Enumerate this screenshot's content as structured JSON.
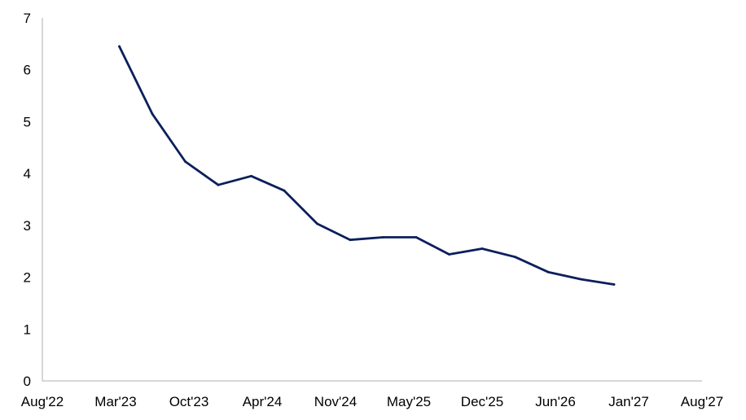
{
  "chart_data": {
    "type": "line",
    "title": "",
    "xlabel": "",
    "ylabel": "",
    "x_ticks": [
      "Aug'22",
      "Mar'23",
      "Oct'23",
      "Apr'24",
      "Nov'24",
      "May'25",
      "Dec'25",
      "Jun'26",
      "Jan'27",
      "Aug'27"
    ],
    "xlim": [
      "2022-08",
      "2027-08"
    ],
    "y_ticks": [
      "0",
      "1",
      "2",
      "3",
      "4",
      "5",
      "6",
      "7"
    ],
    "ylim": [
      0,
      7
    ],
    "grid": false,
    "legend": "none",
    "series": [
      {
        "color": "#0c1f5b",
        "points": [
          {
            "x": "2023-03",
            "y": 6.45
          },
          {
            "x": "2023-06",
            "y": 5.15
          },
          {
            "x": "2023-09",
            "y": 4.23
          },
          {
            "x": "2023-12",
            "y": 3.78
          },
          {
            "x": "2024-03",
            "y": 3.95
          },
          {
            "x": "2024-06",
            "y": 3.67
          },
          {
            "x": "2024-09",
            "y": 3.03
          },
          {
            "x": "2024-12",
            "y": 2.72
          },
          {
            "x": "2025-03",
            "y": 2.77
          },
          {
            "x": "2025-06",
            "y": 2.77
          },
          {
            "x": "2025-09",
            "y": 2.44
          },
          {
            "x": "2025-12",
            "y": 2.55
          },
          {
            "x": "2026-03",
            "y": 2.39
          },
          {
            "x": "2026-06",
            "y": 2.1
          },
          {
            "x": "2026-09",
            "y": 1.96
          },
          {
            "x": "2026-12",
            "y": 1.86
          }
        ]
      }
    ]
  }
}
